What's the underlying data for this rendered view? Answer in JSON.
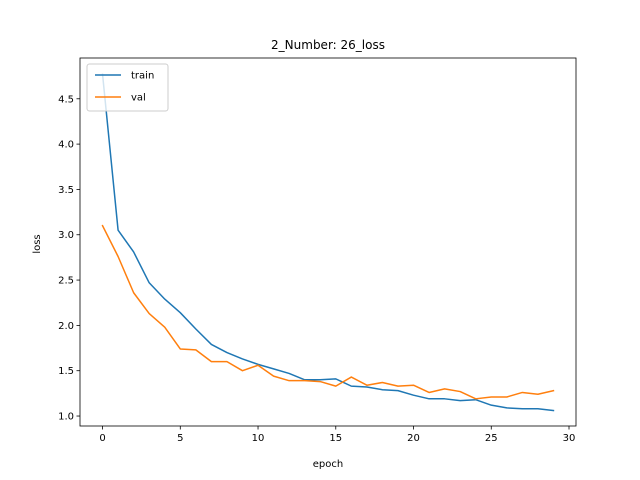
{
  "chart_data": {
    "type": "line",
    "title": "2_Number: 26_loss",
    "xlabel": "epoch",
    "ylabel": "loss",
    "xlim": [
      -1.45,
      30.45
    ],
    "ylim": [
      0.89,
      4.95
    ],
    "xticks": [
      0,
      5,
      10,
      15,
      20,
      25,
      30
    ],
    "yticks": [
      1.0,
      1.5,
      2.0,
      2.5,
      3.0,
      3.5,
      4.0,
      4.5
    ],
    "ytick_labels": [
      "1.0",
      "1.5",
      "2.0",
      "2.5",
      "3.0",
      "3.5",
      "4.0",
      "4.5"
    ],
    "legend_position": "upper-left",
    "grid": false,
    "x": [
      0,
      1,
      2,
      3,
      4,
      5,
      6,
      7,
      8,
      9,
      10,
      11,
      12,
      13,
      14,
      15,
      16,
      17,
      18,
      19,
      20,
      21,
      22,
      23,
      24,
      25,
      26,
      27,
      28,
      29
    ],
    "series": [
      {
        "name": "train",
        "color": "#1f77b4",
        "values": [
          4.77,
          3.05,
          2.81,
          2.47,
          2.29,
          2.14,
          1.96,
          1.79,
          1.7,
          1.63,
          1.57,
          1.52,
          1.47,
          1.4,
          1.4,
          1.41,
          1.33,
          1.32,
          1.29,
          1.28,
          1.23,
          1.19,
          1.19,
          1.17,
          1.18,
          1.12,
          1.09,
          1.08,
          1.08,
          1.06
        ]
      },
      {
        "name": "val",
        "color": "#ff7f0e",
        "values": [
          3.1,
          2.76,
          2.36,
          2.13,
          1.98,
          1.74,
          1.73,
          1.6,
          1.6,
          1.5,
          1.56,
          1.44,
          1.39,
          1.39,
          1.38,
          1.33,
          1.43,
          1.34,
          1.37,
          1.33,
          1.34,
          1.26,
          1.3,
          1.27,
          1.19,
          1.21,
          1.21,
          1.26,
          1.24,
          1.28
        ]
      }
    ]
  }
}
